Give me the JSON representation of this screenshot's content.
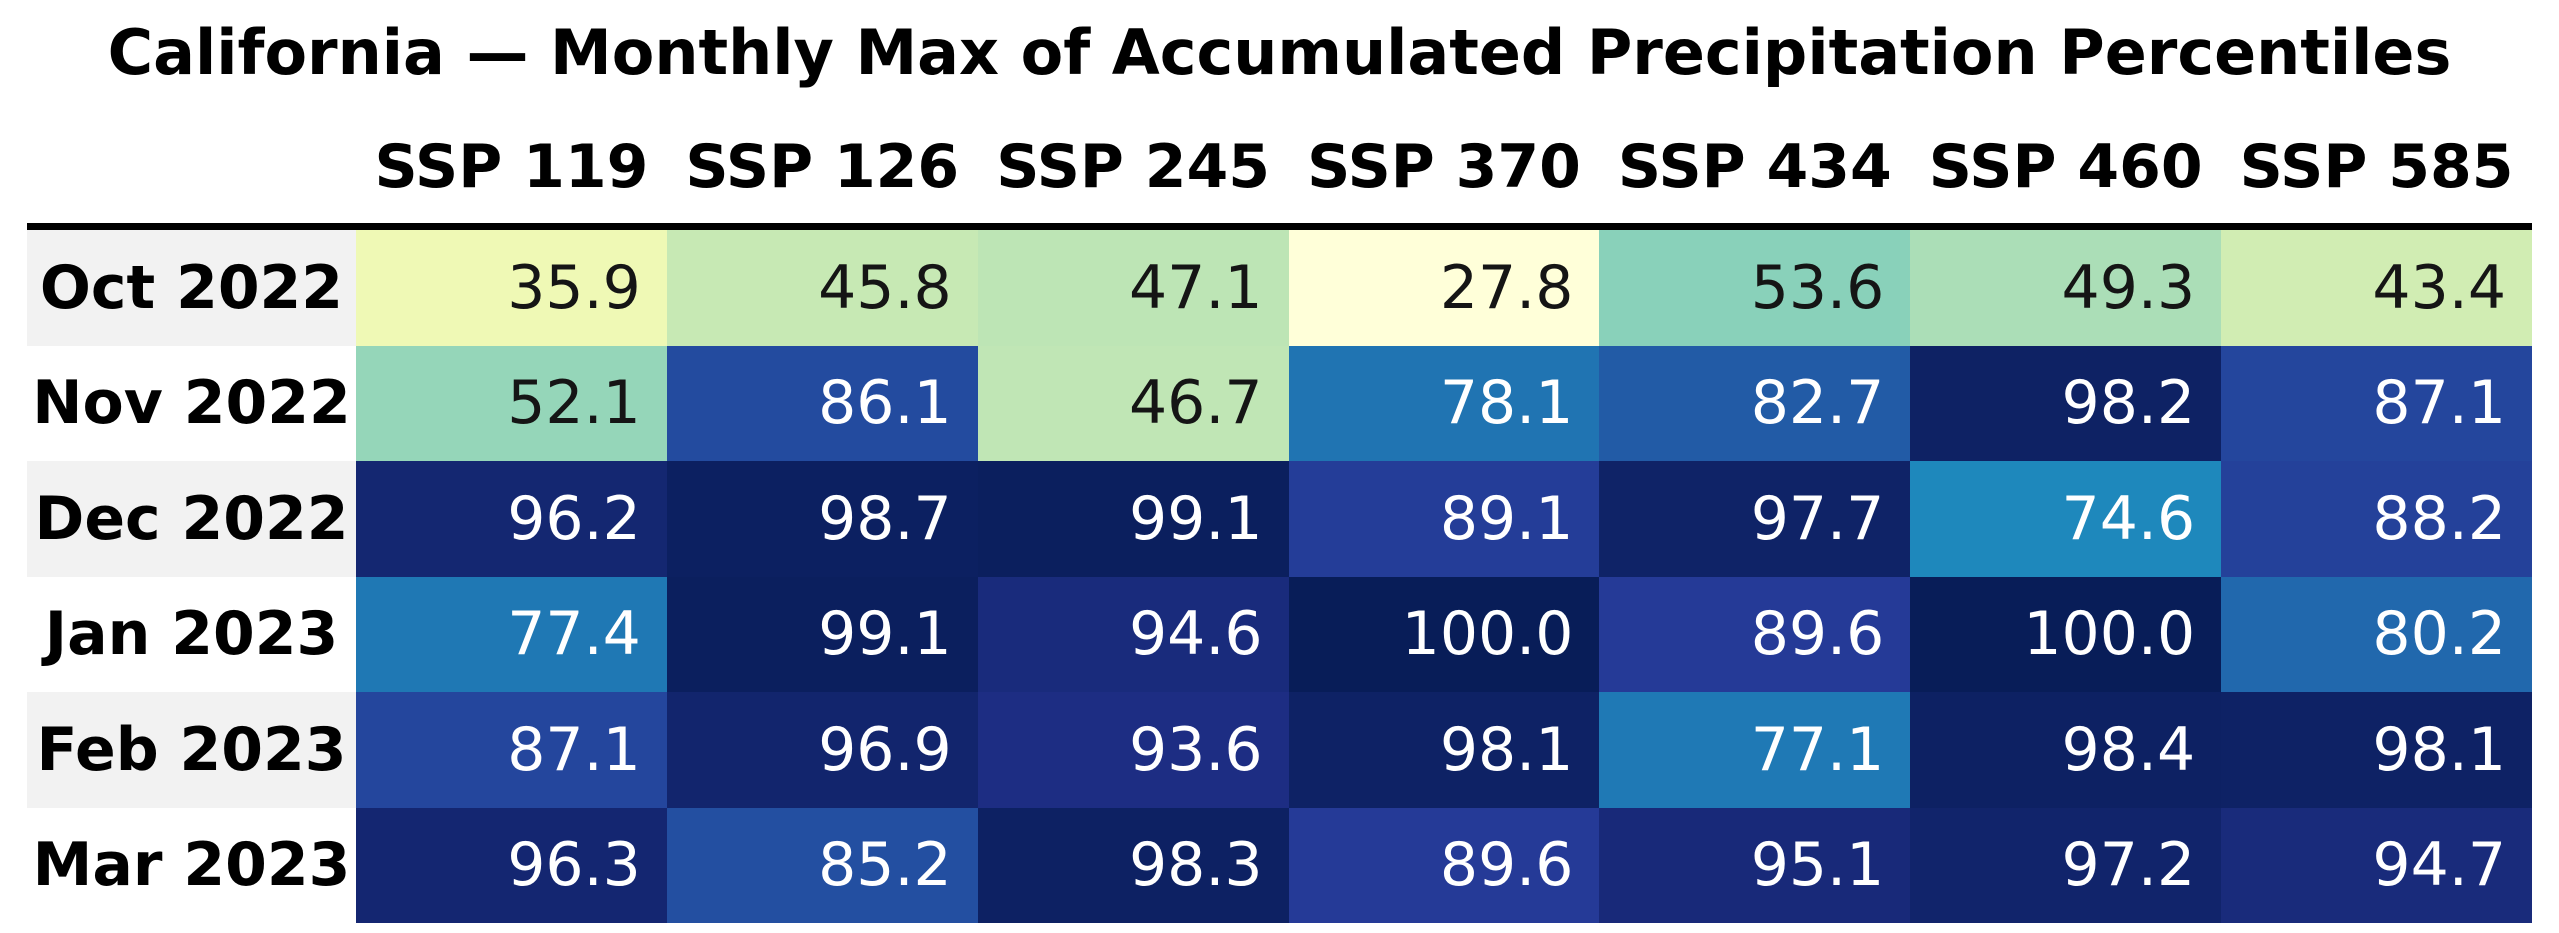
{
  "title": "California — Monthly Max of Accumulated Precipitation Percentiles",
  "chart_data": {
    "type": "heatmap",
    "title": "California — Monthly Max of Accumulated Precipitation Percentiles",
    "columns": [
      "SSP 119",
      "SSP 126",
      "SSP 245",
      "SSP 370",
      "SSP 434",
      "SSP 460",
      "SSP 585"
    ],
    "rows": [
      "Oct 2022",
      "Nov 2022",
      "Dec 2022",
      "Jan 2023",
      "Feb 2023",
      "Mar 2023"
    ],
    "values": [
      [
        35.9,
        45.8,
        47.1,
        27.8,
        53.6,
        49.3,
        43.4
      ],
      [
        52.1,
        86.1,
        46.7,
        78.1,
        82.7,
        98.2,
        87.1
      ],
      [
        96.2,
        98.7,
        99.1,
        89.1,
        97.7,
        74.6,
        88.2
      ],
      [
        77.4,
        99.1,
        94.6,
        100.0,
        89.6,
        100.0,
        80.2
      ],
      [
        87.1,
        96.9,
        93.6,
        98.1,
        77.1,
        98.4,
        98.1
      ],
      [
        96.3,
        85.2,
        98.3,
        89.6,
        95.1,
        97.2,
        94.7
      ]
    ],
    "value_format": "1-decimal",
    "colormap": "YlGnBu",
    "colormap_stops": [
      "#ffffd9",
      "#edf8b1",
      "#c7e9b4",
      "#7fcdbb",
      "#41b6c4",
      "#1d91c0",
      "#225ea8",
      "#253494",
      "#081d58"
    ],
    "vmin": 27.8,
    "vmax": 100.0,
    "annotation_dark_text": "#151515",
    "annotation_light_text": "#ffffff",
    "row_label_bg_alt": "#f2f2f2",
    "row_label_bg": "#ffffff",
    "header_rule_color": "#000000",
    "legend": "none",
    "grid": "off"
  }
}
